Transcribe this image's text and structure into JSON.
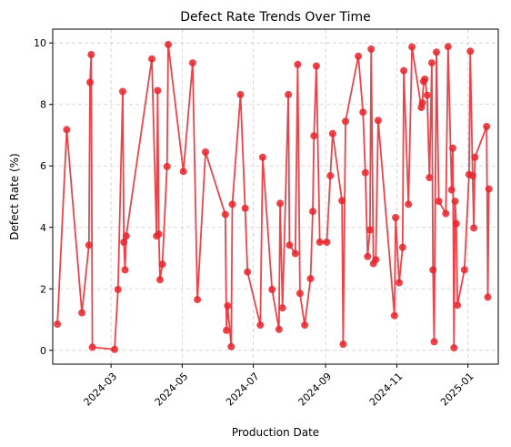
{
  "chart_data": {
    "type": "line",
    "title": "Defect Rate Trends Over Time",
    "xlabel": "Production Date",
    "ylabel": "Defect Rate (%)",
    "x_axis_type": "date",
    "xlim": [
      "2024-01-11",
      "2025-01-27"
    ],
    "ylim": [
      -0.45,
      10.45
    ],
    "x_ticks": [
      "2024-03-01",
      "2024-05-01",
      "2024-07-01",
      "2024-09-01",
      "2024-11-01",
      "2025-01-01"
    ],
    "x_tick_labels": [
      "2024-03",
      "2024-05",
      "2024-07",
      "2024-09",
      "2024-11",
      "2025-01"
    ],
    "y_ticks": [
      0,
      2,
      4,
      6,
      8,
      10
    ],
    "y_tick_labels": [
      "0",
      "2",
      "4",
      "6",
      "8",
      "10"
    ],
    "grid": true,
    "grid_style": "dashed",
    "marker": "circle",
    "color": "#e8242b",
    "series": [
      {
        "x": [
          "2024-01-15",
          "2024-01-23",
          "2024-02-05",
          "2024-02-11",
          "2024-02-12",
          "2024-02-13",
          "2024-02-14",
          "2024-03-04",
          "2024-03-07",
          "2024-03-11",
          "2024-03-12",
          "2024-03-13",
          "2024-03-14",
          "2024-04-05",
          "2024-04-09",
          "2024-04-10",
          "2024-04-11",
          "2024-04-12",
          "2024-04-14",
          "2024-04-18",
          "2024-04-19",
          "2024-05-02",
          "2024-05-10",
          "2024-05-14",
          "2024-05-21",
          "2024-06-07",
          "2024-06-08",
          "2024-06-09",
          "2024-06-12",
          "2024-06-13",
          "2024-06-20",
          "2024-06-24",
          "2024-06-26",
          "2024-07-07",
          "2024-07-09",
          "2024-07-17",
          "2024-07-23",
          "2024-07-24",
          "2024-07-26",
          "2024-07-31",
          "2024-08-01",
          "2024-08-06",
          "2024-08-08",
          "2024-08-10",
          "2024-08-14",
          "2024-08-19",
          "2024-08-21",
          "2024-08-22",
          "2024-08-24",
          "2024-08-27",
          "2024-09-02",
          "2024-09-05",
          "2024-09-07",
          "2024-09-15",
          "2024-09-16",
          "2024-09-18",
          "2024-09-29",
          "2024-10-03",
          "2024-10-05",
          "2024-10-07",
          "2024-10-09",
          "2024-10-10",
          "2024-10-12",
          "2024-10-14",
          "2024-10-16",
          "2024-10-30",
          "2024-10-31",
          "2024-11-03",
          "2024-11-06",
          "2024-11-07",
          "2024-11-11",
          "2024-11-14",
          "2024-11-22",
          "2024-11-23",
          "2024-11-24",
          "2024-11-25",
          "2024-11-27",
          "2024-11-29",
          "2024-12-01",
          "2024-12-02",
          "2024-12-03",
          "2024-12-05",
          "2024-12-07",
          "2024-12-13",
          "2024-12-15",
          "2024-12-18",
          "2024-12-19",
          "2024-12-20",
          "2024-12-21",
          "2024-12-22",
          "2024-12-23",
          "2024-12-29",
          "2025-01-02",
          "2025-01-03",
          "2025-01-05",
          "2025-01-06",
          "2025-01-07",
          "2025-01-17",
          "2025-01-18",
          "2025-01-19"
        ],
        "y": [
          0.85,
          7.18,
          1.22,
          3.42,
          8.72,
          9.62,
          0.1,
          0.03,
          1.98,
          8.42,
          3.52,
          2.62,
          3.72,
          9.48,
          3.72,
          8.45,
          3.78,
          2.3,
          2.8,
          5.98,
          9.95,
          5.82,
          9.35,
          1.65,
          6.45,
          4.42,
          0.65,
          1.45,
          0.12,
          4.75,
          8.32,
          4.62,
          2.55,
          0.82,
          6.28,
          1.98,
          0.68,
          4.78,
          1.38,
          8.32,
          3.42,
          3.15,
          9.3,
          1.85,
          0.82,
          2.33,
          4.52,
          6.98,
          9.25,
          3.52,
          3.52,
          5.68,
          7.05,
          4.87,
          0.2,
          7.45,
          9.57,
          7.75,
          5.78,
          3.05,
          3.92,
          9.8,
          2.82,
          2.95,
          7.48,
          1.13,
          4.32,
          2.2,
          3.35,
          9.1,
          4.75,
          9.87,
          7.9,
          8.05,
          8.75,
          8.82,
          8.3,
          5.62,
          9.35,
          2.62,
          0.28,
          9.7,
          4.85,
          4.45,
          9.88,
          5.22,
          6.58,
          0.08,
          4.85,
          4.12,
          1.47,
          2.62,
          5.72,
          9.73,
          5.68,
          3.98,
          6.28,
          7.28,
          1.73,
          5.25
        ]
      }
    ]
  }
}
